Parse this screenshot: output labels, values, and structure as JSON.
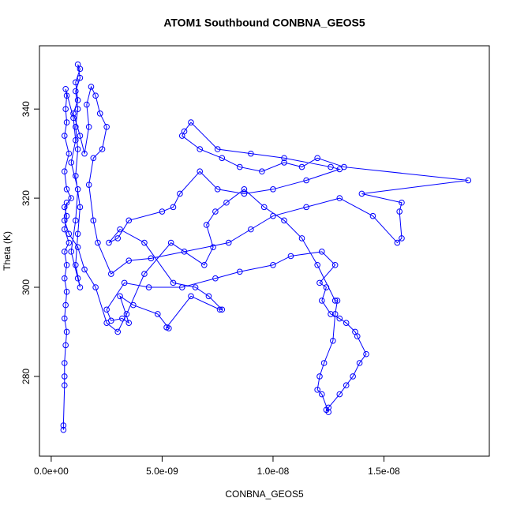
{
  "chart_data": {
    "type": "line",
    "title": "ATOM1 Southbound CONBNA_GEOS5",
    "x_label": "CONBNA_GEOS5",
    "y_label": "Theta (K)",
    "color": "#0000ff",
    "marker": "open-circle",
    "xlim": [
      -5.3e-10,
      1.975e-08
    ],
    "ylim": [
      262.1,
      354.2
    ],
    "xticks": [
      {
        "value": 0,
        "label": "0.0e+00"
      },
      {
        "value": 5e-09,
        "label": "5.0e-09"
      },
      {
        "value": 1e-08,
        "label": "1.0e-08"
      },
      {
        "value": 1.5e-08,
        "label": "1.5e-08"
      }
    ],
    "yticks": [
      280,
      300,
      320,
      340
    ],
    "x": [
      5.5e-10,
      5.5e-10,
      6e-10,
      6e-10,
      6e-10,
      6.5e-10,
      7e-10,
      6e-10,
      6.5e-10,
      7e-10,
      6e-10,
      7e-10,
      6e-10,
      8e-10,
      6e-10,
      7e-10,
      6e-10,
      9e-10,
      7e-10,
      6e-10,
      8e-10,
      6e-10,
      7e-10,
      6.5e-10,
      7e-10,
      6.5e-10,
      1e-09,
      1.1e-09,
      9e-10,
      1.2e-09,
      1.1e-09,
      9e-10,
      1.2e-09,
      1.3e-09,
      1.1e-09,
      1.2e-09,
      1.3e-09,
      1.1e-09,
      1.2e-09,
      1.1e-09,
      1.2e-09,
      1.1e-09,
      1.3e-09,
      1.2e-09,
      1.3e-09,
      1.1e-09,
      1.2e-09,
      1e-09,
      1.3e-09,
      1.5e-09,
      1.7e-09,
      1.6e-09,
      1.8e-09,
      2e-09,
      2.2e-09,
      2.5e-09,
      2.3e-09,
      1.9e-09,
      1.7e-09,
      1.9e-09,
      2.1e-09,
      2.7e-09,
      3.5e-09,
      4.5e-09,
      6e-09,
      8e-09,
      9e-09,
      1e-08,
      1.15e-08,
      1.3e-08,
      1.45e-08,
      1.56e-08,
      1.58e-08,
      1.57e-08,
      1.58e-08,
      1.4e-08,
      1.88e-08,
      1.32e-08,
      1.2e-08,
      1.13e-08,
      1.05e-08,
      9.5e-09,
      8.5e-09,
      7.7e-09,
      6.7e-09,
      5.9e-09,
      6e-09,
      6.3e-09,
      7.5e-09,
      9e-09,
      1.05e-08,
      1.26e-08,
      1.3e-08,
      1.15e-08,
      1e-08,
      8.7e-09,
      7.5e-09,
      6.7e-09,
      5.8e-09,
      5.5e-09,
      5e-09,
      3.5e-09,
      3e-09,
      2.6e-09,
      3.1e-09,
      4.2e-09,
      5.5e-09,
      6.5e-09,
      7.1e-09,
      7.7e-09,
      7.6e-09,
      6.3e-09,
      5.2e-09,
      5.3e-09,
      4.8e-09,
      3.7e-09,
      3.1e-09,
      3.5e-09,
      3.2e-09,
      2.7e-09,
      2.5e-09,
      3.3e-09,
      4.4e-09,
      5.9e-09,
      7.4e-09,
      8.5e-09,
      1e-08,
      1.08e-08,
      1.22e-08,
      1.28e-08,
      1.21e-08,
      1.24e-08,
      1.22e-08,
      1.26e-08,
      1.3e-08,
      1.33e-08,
      1.37e-08,
      1.38e-08,
      1.42e-08,
      1.39e-08,
      1.36e-08,
      1.33e-08,
      1.3e-08,
      1.25e-08,
      1.24e-08,
      1.25e-08,
      1.22e-08,
      1.2e-08,
      1.21e-08,
      1.23e-08,
      1.27e-08,
      1.28e-08,
      1.29e-08,
      1.28e-08,
      1.2e-08,
      1.13e-08,
      1.05e-08,
      9.6e-09,
      8.7e-09,
      7.9e-09,
      7.4e-09,
      7e-09,
      7.3e-09,
      6.9e-09,
      5.4e-09,
      4.2e-09,
      3.4e-09,
      3e-09,
      2.5e-09,
      2e-09,
      1.5e-09,
      1.2e-09,
      8e-10,
      6e-10,
      7e-10
    ],
    "values": [
      268,
      269,
      278,
      280,
      283,
      287,
      290,
      293,
      296,
      299,
      302,
      305,
      308,
      310,
      313,
      316,
      318,
      320,
      322,
      326,
      330,
      334,
      337,
      340,
      343,
      344.5,
      338,
      333,
      328,
      322,
      315,
      308,
      302,
      300,
      305,
      312,
      318,
      325,
      331,
      336,
      340,
      344,
      347,
      350,
      349,
      346,
      342,
      339,
      334,
      330,
      336,
      341,
      345,
      343,
      339,
      336,
      331,
      329,
      323,
      315,
      310,
      303,
      306,
      306.5,
      308,
      310,
      313,
      316,
      318,
      320,
      316,
      310,
      311,
      317,
      319,
      321,
      324,
      327,
      329,
      327,
      328,
      326,
      327,
      329,
      331,
      334,
      335,
      337,
      331,
      330,
      329,
      327,
      326.5,
      324,
      322,
      321,
      322,
      326,
      321,
      318,
      317,
      315,
      311,
      310,
      313,
      310,
      301,
      300,
      298,
      295,
      295,
      298,
      291,
      290.8,
      294,
      296,
      298,
      292,
      293,
      292.5,
      295,
      301,
      300,
      300,
      302,
      303.5,
      305,
      307,
      308,
      305,
      301,
      300,
      297,
      294,
      293,
      292,
      290,
      289,
      285,
      283,
      280,
      278,
      276,
      273,
      272.5,
      272,
      276,
      277,
      280,
      283,
      288,
      294,
      297,
      297,
      305,
      311,
      315,
      318,
      322,
      319,
      317,
      314,
      309,
      305,
      310,
      303,
      294,
      290,
      292,
      300,
      304,
      309,
      312,
      315,
      319
    ]
  }
}
